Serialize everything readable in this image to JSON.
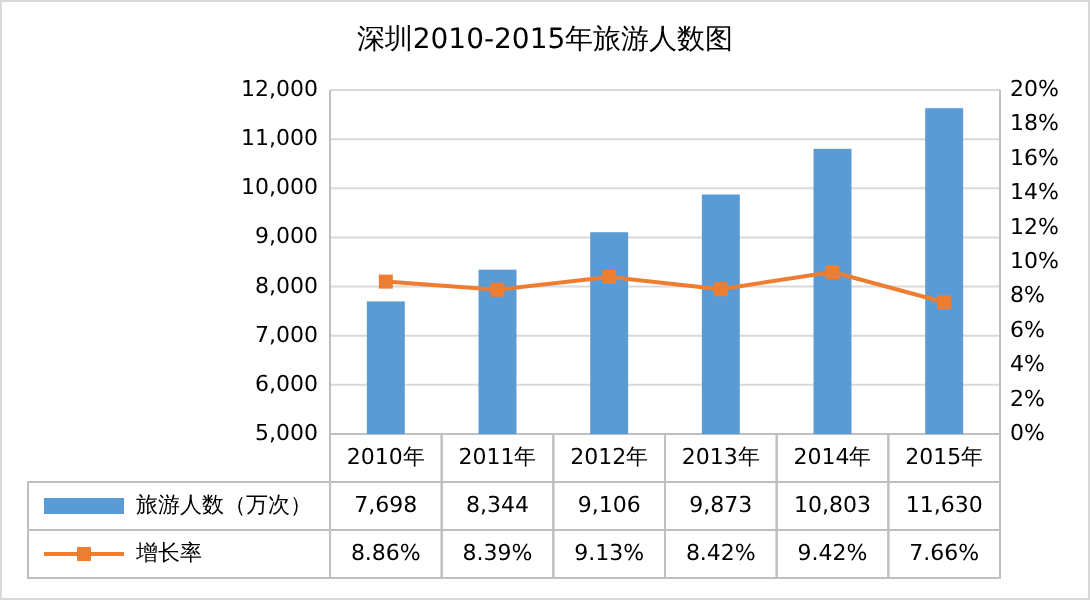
{
  "chart_data": {
    "type": "bar",
    "title": "深圳2010-2015年旅游人数图",
    "categories": [
      "2010年",
      "2011年",
      "2012年",
      "2013年",
      "2014年",
      "2015年"
    ],
    "series": [
      {
        "name": "旅游人数（万次）",
        "color": "#5b9bd5",
        "values": [
          7698,
          8344,
          9106,
          9873,
          10803,
          11630
        ],
        "value_labels": [
          "7,698",
          "8,344",
          "9,106",
          "9,873",
          "10,803",
          "11,630"
        ]
      },
      {
        "name": "增长率",
        "type": "line",
        "axis": "y2",
        "color": "#ed7d31",
        "values": [
          8.86,
          8.39,
          9.13,
          8.42,
          9.42,
          7.66
        ],
        "value_labels": [
          "8.86%",
          "8.39%",
          "9.13%",
          "8.42%",
          "9.42%",
          "7.66%"
        ]
      }
    ],
    "ylim": [
      5000,
      12000
    ],
    "yticks": [
      {
        "value": 5000,
        "label": "5,000"
      },
      {
        "value": 6000,
        "label": "6,000"
      },
      {
        "value": 7000,
        "label": "7,000"
      },
      {
        "value": 8000,
        "label": "8,000"
      },
      {
        "value": 9000,
        "label": "9,000"
      },
      {
        "value": 10000,
        "label": "10,000"
      },
      {
        "value": 11000,
        "label": "11,000"
      },
      {
        "value": 12000,
        "label": "12,000"
      }
    ],
    "y2lim": [
      0,
      20
    ],
    "y2ticks": [
      {
        "value": 0,
        "label": "0%"
      },
      {
        "value": 2,
        "label": "2%"
      },
      {
        "value": 4,
        "label": "4%"
      },
      {
        "value": 6,
        "label": "6%"
      },
      {
        "value": 8,
        "label": "8%"
      },
      {
        "value": 10,
        "label": "10%"
      },
      {
        "value": 12,
        "label": "12%"
      },
      {
        "value": 14,
        "label": "14%"
      },
      {
        "value": 16,
        "label": "16%"
      },
      {
        "value": 18,
        "label": "18%"
      },
      {
        "value": 20,
        "label": "20%"
      }
    ],
    "grid": "y",
    "legend": "bottom",
    "marker": "square"
  }
}
